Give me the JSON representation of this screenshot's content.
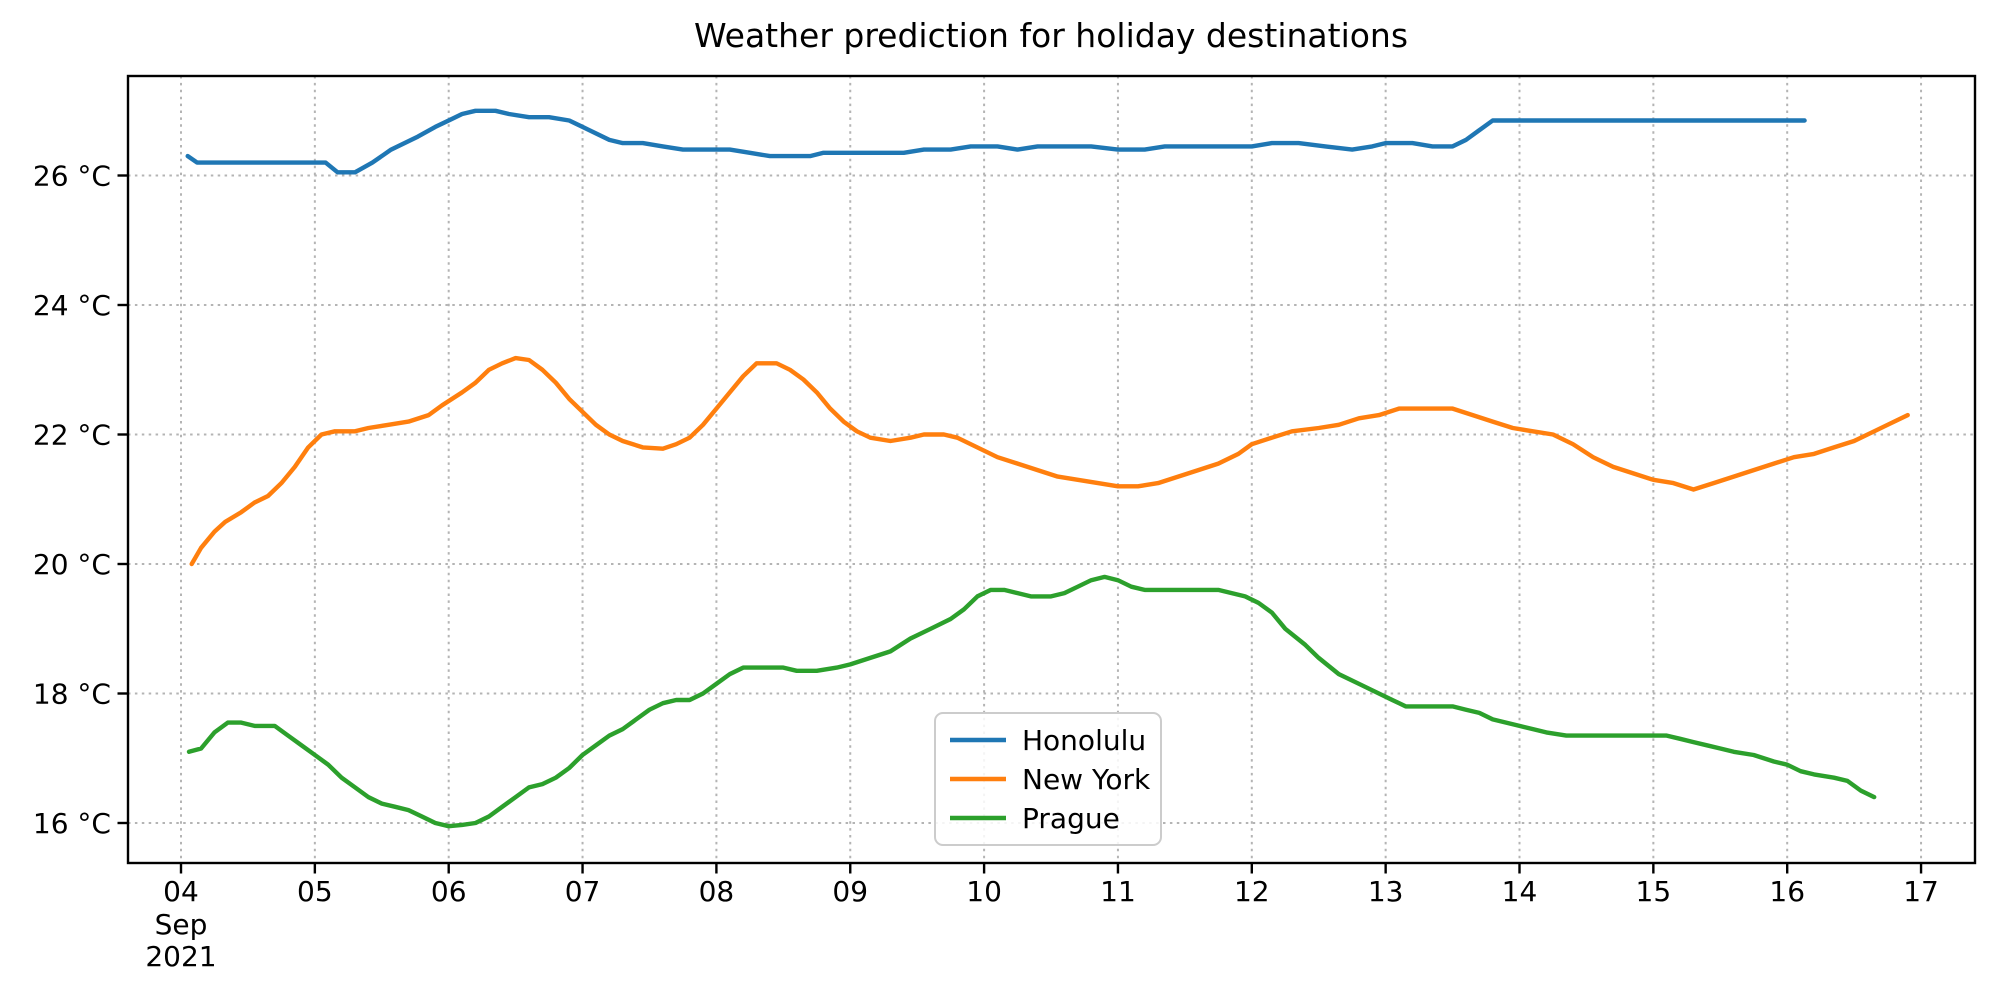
{
  "chart_data": {
    "type": "line",
    "title": "Weather prediction for holiday destinations",
    "grid": true,
    "legend_position": "lower-center-right",
    "background_color": "#ffffff",
    "grid_color": "#b4b4b4",
    "spine_color": "#000000",
    "x_axis": {
      "label": "",
      "month_label": "Sep",
      "year_label": "2021",
      "ticks": [
        4,
        5,
        6,
        7,
        8,
        9,
        10,
        11,
        12,
        13,
        14,
        15,
        16,
        17
      ],
      "tick_labels": [
        "04",
        "05",
        "06",
        "07",
        "08",
        "09",
        "10",
        "11",
        "12",
        "13",
        "14",
        "15",
        "16",
        "17"
      ],
      "range": [
        3.6,
        17.4
      ]
    },
    "y_axis": {
      "label": "",
      "ticks": [
        16,
        18,
        20,
        22,
        24,
        26
      ],
      "tick_labels": [
        "16 °C",
        "18 °C",
        "20 °C",
        "22 °C",
        "24 °C",
        "26 °C"
      ],
      "range": [
        15.38,
        27.55
      ]
    },
    "series": [
      {
        "name": "Honolulu",
        "color": "#1f77b4",
        "points": [
          [
            4.05,
            26.3
          ],
          [
            4.12,
            26.2
          ],
          [
            4.4,
            26.2
          ],
          [
            4.7,
            26.2
          ],
          [
            5.0,
            26.2
          ],
          [
            5.08,
            26.2
          ],
          [
            5.17,
            26.05
          ],
          [
            5.3,
            26.05
          ],
          [
            5.43,
            26.2
          ],
          [
            5.57,
            26.4
          ],
          [
            5.77,
            26.6
          ],
          [
            5.9,
            26.75
          ],
          [
            6.0,
            26.85
          ],
          [
            6.1,
            26.95
          ],
          [
            6.2,
            27.0
          ],
          [
            6.35,
            27.0
          ],
          [
            6.45,
            26.95
          ],
          [
            6.6,
            26.9
          ],
          [
            6.75,
            26.9
          ],
          [
            6.9,
            26.85
          ],
          [
            7.0,
            26.75
          ],
          [
            7.1,
            26.65
          ],
          [
            7.2,
            26.55
          ],
          [
            7.3,
            26.5
          ],
          [
            7.45,
            26.5
          ],
          [
            7.6,
            26.45
          ],
          [
            7.75,
            26.4
          ],
          [
            7.9,
            26.4
          ],
          [
            8.1,
            26.4
          ],
          [
            8.25,
            26.35
          ],
          [
            8.4,
            26.3
          ],
          [
            8.55,
            26.3
          ],
          [
            8.7,
            26.3
          ],
          [
            8.8,
            26.35
          ],
          [
            9.0,
            26.35
          ],
          [
            9.2,
            26.35
          ],
          [
            9.4,
            26.35
          ],
          [
            9.55,
            26.4
          ],
          [
            9.75,
            26.4
          ],
          [
            9.9,
            26.45
          ],
          [
            10.1,
            26.45
          ],
          [
            10.25,
            26.4
          ],
          [
            10.4,
            26.45
          ],
          [
            10.6,
            26.45
          ],
          [
            10.8,
            26.45
          ],
          [
            11.0,
            26.4
          ],
          [
            11.2,
            26.4
          ],
          [
            11.35,
            26.45
          ],
          [
            11.6,
            26.45
          ],
          [
            11.8,
            26.45
          ],
          [
            12.0,
            26.45
          ],
          [
            12.15,
            26.5
          ],
          [
            12.35,
            26.5
          ],
          [
            12.55,
            26.45
          ],
          [
            12.75,
            26.4
          ],
          [
            12.9,
            26.45
          ],
          [
            13.0,
            26.5
          ],
          [
            13.2,
            26.5
          ],
          [
            13.35,
            26.45
          ],
          [
            13.5,
            26.45
          ],
          [
            13.6,
            26.55
          ],
          [
            13.7,
            26.7
          ],
          [
            13.8,
            26.85
          ],
          [
            14.0,
            26.85
          ],
          [
            14.3,
            26.85
          ],
          [
            14.6,
            26.85
          ],
          [
            14.9,
            26.85
          ],
          [
            15.2,
            26.85
          ],
          [
            15.5,
            26.85
          ],
          [
            15.8,
            26.85
          ],
          [
            16.0,
            26.85
          ],
          [
            16.13,
            26.85
          ]
        ]
      },
      {
        "name": "New York",
        "color": "#ff7f0e",
        "points": [
          [
            4.08,
            20.0
          ],
          [
            4.15,
            20.25
          ],
          [
            4.25,
            20.5
          ],
          [
            4.33,
            20.65
          ],
          [
            4.45,
            20.8
          ],
          [
            4.55,
            20.95
          ],
          [
            4.65,
            21.05
          ],
          [
            4.75,
            21.25
          ],
          [
            4.85,
            21.5
          ],
          [
            4.95,
            21.8
          ],
          [
            5.05,
            22.0
          ],
          [
            5.15,
            22.05
          ],
          [
            5.3,
            22.05
          ],
          [
            5.4,
            22.1
          ],
          [
            5.55,
            22.15
          ],
          [
            5.7,
            22.2
          ],
          [
            5.85,
            22.3
          ],
          [
            5.95,
            22.45
          ],
          [
            6.1,
            22.65
          ],
          [
            6.2,
            22.8
          ],
          [
            6.3,
            23.0
          ],
          [
            6.4,
            23.1
          ],
          [
            6.5,
            23.18
          ],
          [
            6.6,
            23.15
          ],
          [
            6.7,
            23.0
          ],
          [
            6.8,
            22.8
          ],
          [
            6.9,
            22.55
          ],
          [
            7.0,
            22.35
          ],
          [
            7.1,
            22.15
          ],
          [
            7.2,
            22.0
          ],
          [
            7.3,
            21.9
          ],
          [
            7.45,
            21.8
          ],
          [
            7.6,
            21.78
          ],
          [
            7.7,
            21.85
          ],
          [
            7.8,
            21.95
          ],
          [
            7.9,
            22.15
          ],
          [
            8.0,
            22.4
          ],
          [
            8.1,
            22.65
          ],
          [
            8.2,
            22.9
          ],
          [
            8.3,
            23.1
          ],
          [
            8.45,
            23.1
          ],
          [
            8.55,
            23.0
          ],
          [
            8.65,
            22.85
          ],
          [
            8.75,
            22.65
          ],
          [
            8.85,
            22.4
          ],
          [
            8.95,
            22.2
          ],
          [
            9.05,
            22.05
          ],
          [
            9.15,
            21.95
          ],
          [
            9.3,
            21.9
          ],
          [
            9.45,
            21.95
          ],
          [
            9.55,
            22.0
          ],
          [
            9.7,
            22.0
          ],
          [
            9.8,
            21.95
          ],
          [
            9.9,
            21.85
          ],
          [
            10.0,
            21.75
          ],
          [
            10.1,
            21.65
          ],
          [
            10.25,
            21.55
          ],
          [
            10.4,
            21.45
          ],
          [
            10.55,
            21.35
          ],
          [
            10.7,
            21.3
          ],
          [
            10.85,
            21.25
          ],
          [
            11.0,
            21.2
          ],
          [
            11.15,
            21.2
          ],
          [
            11.3,
            21.25
          ],
          [
            11.45,
            21.35
          ],
          [
            11.6,
            21.45
          ],
          [
            11.75,
            21.55
          ],
          [
            11.9,
            21.7
          ],
          [
            12.0,
            21.85
          ],
          [
            12.15,
            21.95
          ],
          [
            12.3,
            22.05
          ],
          [
            12.5,
            22.1
          ],
          [
            12.65,
            22.15
          ],
          [
            12.8,
            22.25
          ],
          [
            12.95,
            22.3
          ],
          [
            13.1,
            22.4
          ],
          [
            13.3,
            22.4
          ],
          [
            13.5,
            22.4
          ],
          [
            13.65,
            22.3
          ],
          [
            13.8,
            22.2
          ],
          [
            13.95,
            22.1
          ],
          [
            14.1,
            22.05
          ],
          [
            14.25,
            22.0
          ],
          [
            14.4,
            21.85
          ],
          [
            14.55,
            21.65
          ],
          [
            14.7,
            21.5
          ],
          [
            14.85,
            21.4
          ],
          [
            15.0,
            21.3
          ],
          [
            15.15,
            21.25
          ],
          [
            15.3,
            21.15
          ],
          [
            15.45,
            21.25
          ],
          [
            15.6,
            21.35
          ],
          [
            15.75,
            21.45
          ],
          [
            15.9,
            21.55
          ],
          [
            16.05,
            21.65
          ],
          [
            16.2,
            21.7
          ],
          [
            16.35,
            21.8
          ],
          [
            16.5,
            21.9
          ],
          [
            16.65,
            22.05
          ],
          [
            16.75,
            22.15
          ],
          [
            16.9,
            22.3
          ]
        ]
      },
      {
        "name": "Prague",
        "color": "#2ca02c",
        "points": [
          [
            4.06,
            17.1
          ],
          [
            4.15,
            17.15
          ],
          [
            4.25,
            17.4
          ],
          [
            4.35,
            17.55
          ],
          [
            4.45,
            17.55
          ],
          [
            4.55,
            17.5
          ],
          [
            4.7,
            17.5
          ],
          [
            4.8,
            17.35
          ],
          [
            4.9,
            17.2
          ],
          [
            5.0,
            17.05
          ],
          [
            5.1,
            16.9
          ],
          [
            5.2,
            16.7
          ],
          [
            5.3,
            16.55
          ],
          [
            5.4,
            16.4
          ],
          [
            5.5,
            16.3
          ],
          [
            5.6,
            16.25
          ],
          [
            5.7,
            16.2
          ],
          [
            5.8,
            16.1
          ],
          [
            5.9,
            16.0
          ],
          [
            6.0,
            15.95
          ],
          [
            6.1,
            15.97
          ],
          [
            6.2,
            16.0
          ],
          [
            6.3,
            16.1
          ],
          [
            6.4,
            16.25
          ],
          [
            6.5,
            16.4
          ],
          [
            6.6,
            16.55
          ],
          [
            6.7,
            16.6
          ],
          [
            6.8,
            16.7
          ],
          [
            6.9,
            16.85
          ],
          [
            7.0,
            17.05
          ],
          [
            7.1,
            17.2
          ],
          [
            7.2,
            17.35
          ],
          [
            7.3,
            17.45
          ],
          [
            7.4,
            17.6
          ],
          [
            7.5,
            17.75
          ],
          [
            7.6,
            17.85
          ],
          [
            7.7,
            17.9
          ],
          [
            7.8,
            17.9
          ],
          [
            7.9,
            18.0
          ],
          [
            8.0,
            18.15
          ],
          [
            8.1,
            18.3
          ],
          [
            8.2,
            18.4
          ],
          [
            8.35,
            18.4
          ],
          [
            8.5,
            18.4
          ],
          [
            8.6,
            18.35
          ],
          [
            8.75,
            18.35
          ],
          [
            8.9,
            18.4
          ],
          [
            9.0,
            18.45
          ],
          [
            9.15,
            18.55
          ],
          [
            9.3,
            18.65
          ],
          [
            9.45,
            18.85
          ],
          [
            9.6,
            19.0
          ],
          [
            9.75,
            19.15
          ],
          [
            9.85,
            19.3
          ],
          [
            9.95,
            19.5
          ],
          [
            10.05,
            19.6
          ],
          [
            10.15,
            19.6
          ],
          [
            10.25,
            19.55
          ],
          [
            10.35,
            19.5
          ],
          [
            10.5,
            19.5
          ],
          [
            10.6,
            19.55
          ],
          [
            10.7,
            19.65
          ],
          [
            10.8,
            19.75
          ],
          [
            10.9,
            19.8
          ],
          [
            11.0,
            19.75
          ],
          [
            11.1,
            19.65
          ],
          [
            11.2,
            19.6
          ],
          [
            11.4,
            19.6
          ],
          [
            11.6,
            19.6
          ],
          [
            11.75,
            19.6
          ],
          [
            11.85,
            19.55
          ],
          [
            11.95,
            19.5
          ],
          [
            12.05,
            19.4
          ],
          [
            12.15,
            19.25
          ],
          [
            12.25,
            19.0
          ],
          [
            12.4,
            18.75
          ],
          [
            12.5,
            18.55
          ],
          [
            12.65,
            18.3
          ],
          [
            12.8,
            18.15
          ],
          [
            12.9,
            18.05
          ],
          [
            13.05,
            17.9
          ],
          [
            13.15,
            17.8
          ],
          [
            13.3,
            17.8
          ],
          [
            13.5,
            17.8
          ],
          [
            13.6,
            17.75
          ],
          [
            13.7,
            17.7
          ],
          [
            13.8,
            17.6
          ],
          [
            13.9,
            17.55
          ],
          [
            14.0,
            17.5
          ],
          [
            14.1,
            17.45
          ],
          [
            14.2,
            17.4
          ],
          [
            14.35,
            17.35
          ],
          [
            14.5,
            17.35
          ],
          [
            14.7,
            17.35
          ],
          [
            14.9,
            17.35
          ],
          [
            15.1,
            17.35
          ],
          [
            15.2,
            17.3
          ],
          [
            15.3,
            17.25
          ],
          [
            15.4,
            17.2
          ],
          [
            15.5,
            17.15
          ],
          [
            15.6,
            17.1
          ],
          [
            15.75,
            17.05
          ],
          [
            15.9,
            16.95
          ],
          [
            16.0,
            16.9
          ],
          [
            16.1,
            16.8
          ],
          [
            16.2,
            16.75
          ],
          [
            16.35,
            16.7
          ],
          [
            16.45,
            16.65
          ],
          [
            16.55,
            16.5
          ],
          [
            16.65,
            16.4
          ]
        ]
      }
    ]
  }
}
